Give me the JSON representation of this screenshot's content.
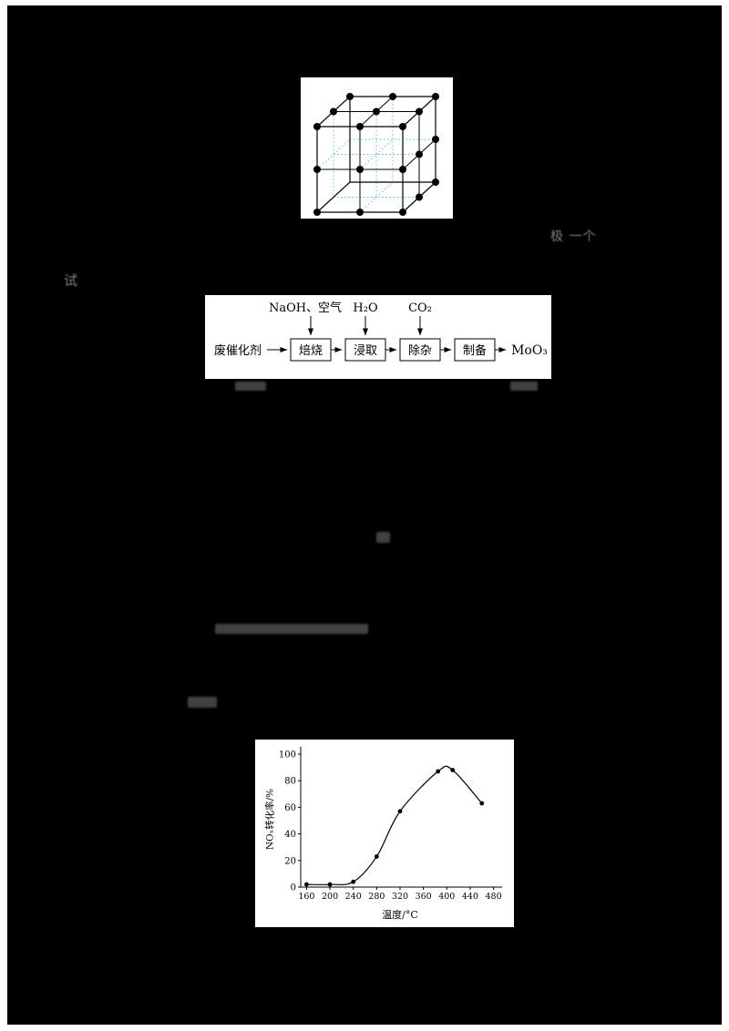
{
  "flow_diagram": {
    "inputs_top": [
      {
        "label": "NaOH、空气"
      },
      {
        "label": "H₂O"
      },
      {
        "label": "CO₂"
      }
    ],
    "source": "废催化剂",
    "steps": [
      "焙烧",
      "浸取",
      "除杂",
      "制备"
    ],
    "product": "MoO₃"
  },
  "chart_data": {
    "type": "line",
    "x": [
      160,
      200,
      240,
      280,
      320,
      385,
      410,
      460
    ],
    "y": [
      2,
      2,
      4,
      23,
      57,
      87,
      88,
      63
    ],
    "title": "",
    "xlabel": "温度/°C",
    "ylabel": "NOₓ转化率/%",
    "xticks": [
      160,
      200,
      240,
      280,
      320,
      360,
      400,
      440,
      480
    ],
    "yticks": [
      0,
      20,
      40,
      60,
      80,
      100
    ],
    "xlim": [
      150,
      490
    ],
    "ylim": [
      0,
      100
    ],
    "grid": false,
    "legend": null,
    "marker": "filled-circle",
    "line_color": "#000000"
  },
  "faint_fragments": [
    {
      "text": "极 一个"
    },
    {
      "text": "试"
    }
  ],
  "colors": {
    "page_background": "#000000",
    "figure_background": "#ffffff",
    "crystal_dashed_line": "#45c0d8",
    "ink": "#000000"
  }
}
